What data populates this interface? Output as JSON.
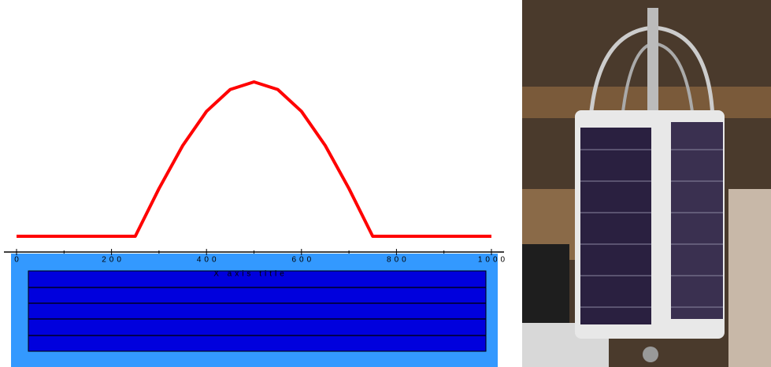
{
  "chart_data": {
    "type": "line",
    "x_axis_title": "X axis title",
    "x": [
      0,
      50,
      100,
      150,
      200,
      250,
      300,
      350,
      400,
      450,
      500,
      550,
      600,
      650,
      700,
      750,
      800,
      850,
      900,
      950,
      1000
    ],
    "series": [
      {
        "color": "#ff0000",
        "values": [
          0,
          0,
          0,
          0,
          0,
          0,
          0.309,
          0.588,
          0.809,
          0.951,
          1,
          0.951,
          0.809,
          0.588,
          0.309,
          0,
          0,
          0,
          0,
          0,
          0
        ]
      }
    ],
    "xlim": [
      0,
      1000
    ],
    "ylim": [
      0,
      1
    ],
    "xticks": [
      0,
      200,
      400,
      600,
      800,
      1000
    ],
    "xminor_ticks": [
      100,
      300,
      500,
      700,
      900
    ]
  }
}
